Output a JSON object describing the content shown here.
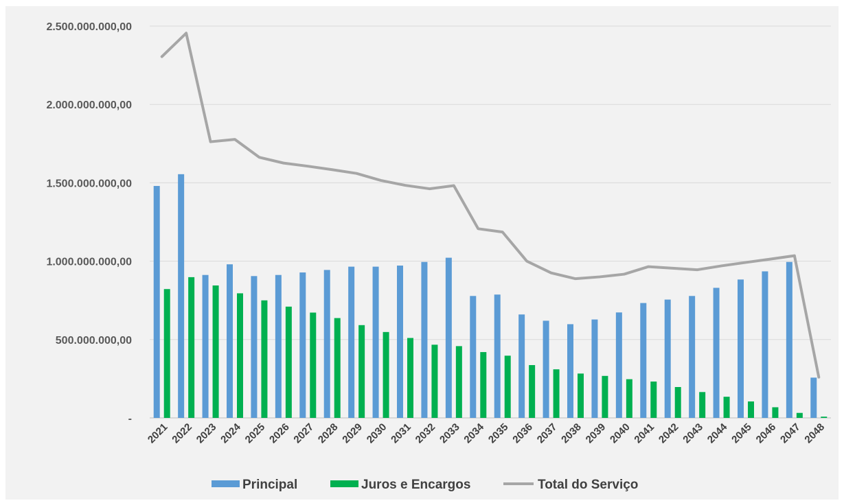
{
  "chart_data": {
    "type": "bar",
    "title": "",
    "xlabel": "",
    "ylabel": "",
    "ylim": [
      0,
      2500000000
    ],
    "yticks": [
      {
        "value": 0,
        "label": "-"
      },
      {
        "value": 500000000,
        "label": "500.000.000,00"
      },
      {
        "value": 1000000000,
        "label": "1.000.000.000,00"
      },
      {
        "value": 1500000000,
        "label": "1.500.000.000,00"
      },
      {
        "value": 2000000000,
        "label": "2.000.000.000,00"
      },
      {
        "value": 2500000000,
        "label": "2.500.000.000,00"
      }
    ],
    "grid": true,
    "legend_position": "bottom",
    "categories": [
      "2021",
      "2022",
      "2023",
      "2024",
      "2025",
      "2026",
      "2027",
      "2028",
      "2029",
      "2030",
      "2031",
      "2032",
      "2033",
      "2034",
      "2035",
      "2036",
      "2037",
      "2038",
      "2039",
      "2040",
      "2041",
      "2042",
      "2043",
      "2044",
      "2045",
      "2046",
      "2047",
      "2048"
    ],
    "series": [
      {
        "name": "Principal",
        "kind": "bar",
        "color": "#5b9bd5",
        "values": [
          1480000000,
          1555000000,
          912000000,
          980000000,
          905000000,
          912000000,
          928000000,
          944000000,
          965000000,
          965000000,
          972000000,
          995000000,
          1022000000,
          778000000,
          787000000,
          660000000,
          620000000,
          598000000,
          628000000,
          673000000,
          733000000,
          755000000,
          778000000,
          830000000,
          883000000,
          935000000,
          995000000,
          257000000
        ]
      },
      {
        "name": "Juros e Encargos",
        "kind": "bar",
        "color": "#00b050",
        "values": [
          822000000,
          898000000,
          845000000,
          795000000,
          750000000,
          710000000,
          672000000,
          637000000,
          592000000,
          548000000,
          510000000,
          467000000,
          458000000,
          420000000,
          397000000,
          337000000,
          310000000,
          283000000,
          268000000,
          247000000,
          232000000,
          197000000,
          165000000,
          135000000,
          105000000,
          68000000,
          32000000,
          8000000
        ]
      },
      {
        "name": "Total do Serviço",
        "kind": "line",
        "color": "#a6a6a6",
        "values": [
          2305000000,
          2455000000,
          1762000000,
          1777000000,
          1663000000,
          1626000000,
          1606000000,
          1584000000,
          1560000000,
          1515000000,
          1484000000,
          1462000000,
          1482000000,
          1207000000,
          1186000000,
          1000000000,
          925000000,
          888000000,
          900000000,
          917000000,
          965000000,
          955000000,
          945000000,
          970000000,
          992000000,
          1013000000,
          1035000000,
          260000000
        ]
      }
    ]
  }
}
